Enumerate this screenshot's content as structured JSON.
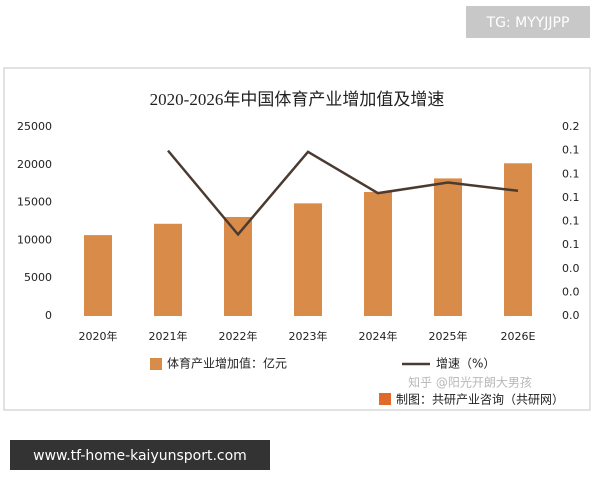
{
  "overlay": {
    "tag": "TG: MYYJJPP",
    "url": "www.tf-home-kaiyunsport.com",
    "watermark": "知乎 @阳光开朗大男孩"
  },
  "chart_data": {
    "type": "bar_line",
    "title": "2020-2026年中国体育产业增加值及增速",
    "source": "制图：共研产业咨询（共研网）",
    "categories": [
      "2020年",
      "2021年",
      "2022年",
      "2023年",
      "2024年",
      "2025年",
      "2026E"
    ],
    "series": [
      {
        "name": "体育产业增加值：亿元",
        "color": "#d98c4a",
        "type": "bar",
        "values": [
          10700,
          12200,
          13100,
          14900,
          16400,
          18200,
          20200
        ]
      },
      {
        "name": "增速（%）",
        "color": "#4a3a30",
        "type": "line",
        "axis": "y2",
        "values": [
          null,
          0.14,
          0.069,
          0.139,
          0.104,
          0.113,
          0.106
        ]
      }
    ],
    "ylim": [
      0,
      25000
    ],
    "yticks": [
      0,
      5000,
      10000,
      15000,
      20000,
      25000
    ],
    "y2lim": [
      0,
      0.16
    ],
    "y2ticks": [
      {
        "value": 0,
        "label": "0.0"
      },
      {
        "value": 0.02,
        "label": "0.0"
      },
      {
        "value": 0.04,
        "label": "0.0"
      },
      {
        "value": 0.06,
        "label": "0.1"
      },
      {
        "value": 0.08,
        "label": "0.1"
      },
      {
        "value": 0.1,
        "label": "0.1"
      },
      {
        "value": 0.12,
        "label": "0.1"
      },
      {
        "value": 0.14,
        "label": "0.1"
      },
      {
        "value": 0.16,
        "label": "0.2"
      }
    ],
    "grid": false,
    "legend": "bottom"
  }
}
